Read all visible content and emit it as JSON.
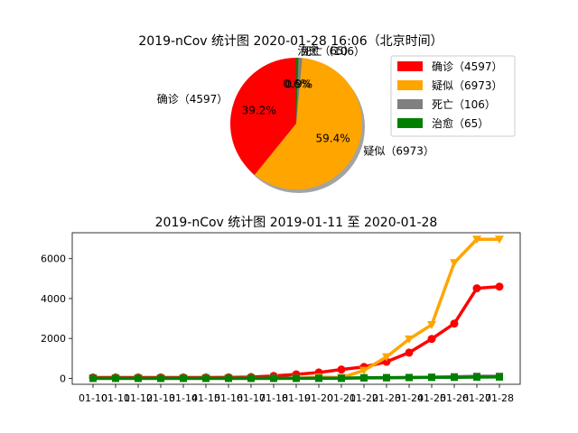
{
  "chart_data": [
    {
      "type": "pie",
      "title": "2019-nCov 统计图 2020-01-28 16:06（北京时间）",
      "slices": [
        {
          "label": "确诊（4597）",
          "value": 4597,
          "pct_text": "39.2%",
          "color": "#ff0000"
        },
        {
          "label": "疑似（6973）",
          "value": 6973,
          "pct_text": "59.4%",
          "color": "#ffa500"
        },
        {
          "label": "死亡（106）",
          "value": 106,
          "pct_text": "0.9%",
          "color": "#808080"
        },
        {
          "label": "治愈（65）",
          "value": 65,
          "pct_text": "0.6%",
          "color": "#008000"
        }
      ],
      "shadow": true,
      "legend_position": "upper-right"
    },
    {
      "type": "line",
      "title": "2019-nCov 统计图 2019-01-11 至 2020-01-28",
      "categories": [
        "01-10",
        "01-11",
        "01-12",
        "01-13",
        "01-14",
        "01-15",
        "01-16",
        "01-17",
        "01-18",
        "01-19",
        "01-20",
        "01-21",
        "01-22",
        "01-23",
        "01-24",
        "01-25",
        "01-26",
        "01-27",
        "01-28"
      ],
      "yticks": [
        0,
        2000,
        4000,
        6000
      ],
      "ylim": [
        -300,
        7300
      ],
      "grid": false,
      "series": [
        {
          "name": "确诊",
          "color": "#ff0000",
          "marker": "circle",
          "values": [
            41,
            41,
            41,
            41,
            41,
            41,
            45,
            62,
            121,
            198,
            291,
            440,
            571,
            830,
            1287,
            1975,
            2744,
            4515,
            4597
          ]
        },
        {
          "name": "疑似",
          "color": "#ffa500",
          "marker": "triangle-down",
          "values": [
            0,
            0,
            0,
            0,
            0,
            0,
            0,
            0,
            0,
            0,
            54,
            37,
            393,
            1072,
            1965,
            2684,
            5794,
            6973,
            6973
          ]
        },
        {
          "name": "死亡",
          "color": "#808080",
          "marker": "square",
          "values": [
            1,
            1,
            1,
            1,
            1,
            1,
            2,
            2,
            2,
            3,
            6,
            9,
            17,
            25,
            41,
            56,
            80,
            106,
            106
          ]
        },
        {
          "name": "治愈",
          "color": "#008000",
          "marker": "square",
          "values": [
            0,
            0,
            0,
            0,
            0,
            0,
            0,
            0,
            0,
            0,
            0,
            0,
            28,
            34,
            38,
            49,
            51,
            60,
            65
          ]
        }
      ]
    }
  ]
}
